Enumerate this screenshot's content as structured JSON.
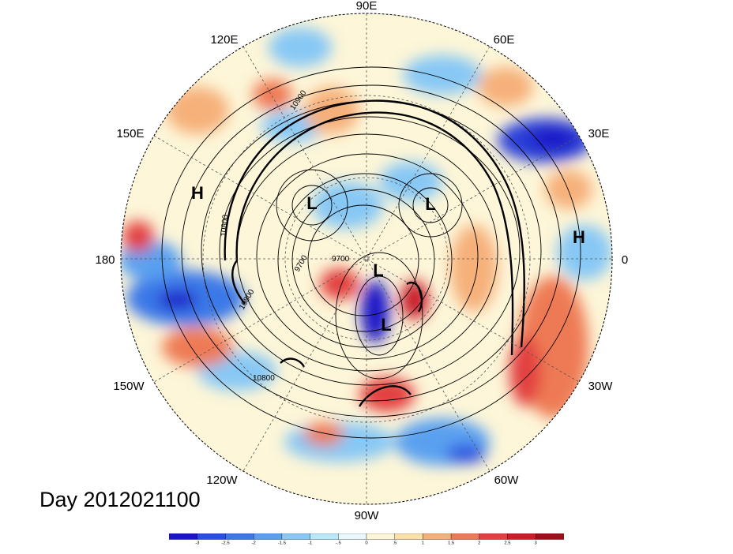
{
  "map": {
    "projection": "north-polar-stereographic",
    "longitude_labels": [
      "90E",
      "60E",
      "30E",
      "0",
      "30W",
      "60W",
      "90W",
      "120W",
      "150W",
      "180",
      "150E",
      "120E"
    ],
    "pressure_systems": [
      "H",
      "L",
      "L",
      "L",
      "L",
      "H"
    ],
    "contour_labels": [
      "10900",
      "10800",
      "9700",
      "9700",
      "10800",
      "10800"
    ]
  },
  "title": "Day 2012021100",
  "colorbar": {
    "labels": [
      "-3",
      "-2.5",
      "-2",
      "-1.5",
      "-1",
      "-.5",
      "0",
      ".5",
      "1",
      "1.5",
      "2",
      "2.5",
      "3"
    ],
    "colors": [
      "#1b14c8",
      "#2a4fe0",
      "#3a78e8",
      "#5aa0f0",
      "#87c8f5",
      "#b9e8f8",
      "#e8f8fc",
      "#fdf6d8",
      "#fbe0a8",
      "#f6b07a",
      "#ee7a55",
      "#e24040",
      "#c81e2a",
      "#a00e1c"
    ]
  }
}
